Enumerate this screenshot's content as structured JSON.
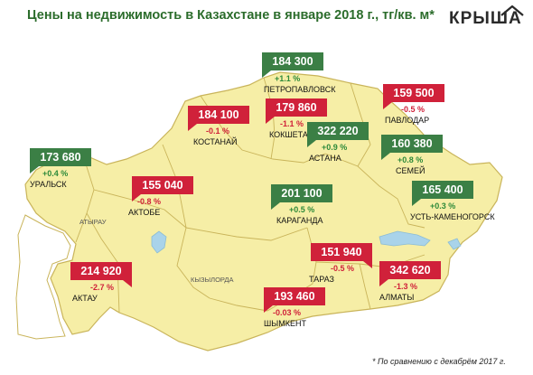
{
  "title": "Цены на недвижимость в Казахстане в январе 2018 г., тг/кв. м*",
  "logo": "КРЫША",
  "footnote": "* По сравнению с декабрём 2017 г.",
  "colors": {
    "up": "#3b7f45",
    "down": "#d0213a",
    "land": "#f6eea6",
    "border": "#c9b45a",
    "water": "#a9d3ea"
  },
  "regions": [
    "АТЫРАУ",
    "КЫЗЫЛОРДА"
  ],
  "cities": [
    {
      "name": "ПЕТРОПАВЛОВСК",
      "price": "184 300",
      "change": "+1.1 %",
      "trend": "up"
    },
    {
      "name": "ПАВЛОДАР",
      "price": "159 500",
      "change": "-0.5 %",
      "trend": "down"
    },
    {
      "name": "КОСТАНАЙ",
      "price": "184 100",
      "change": "-0.1 %",
      "trend": "down"
    },
    {
      "name": "КОКШЕТАУ",
      "price": "179 860",
      "change": "-1.1 %",
      "trend": "down"
    },
    {
      "name": "АСТАНА",
      "price": "322 220",
      "change": "+0.9 %",
      "trend": "up"
    },
    {
      "name": "СЕМЕЙ",
      "price": "160 380",
      "change": "+0.8 %",
      "trend": "up"
    },
    {
      "name": "УРАЛЬСК",
      "price": "173 680",
      "change": "+0.4 %",
      "trend": "up"
    },
    {
      "name": "АКТОБЕ",
      "price": "155 040",
      "change": "-0.8 %",
      "trend": "down"
    },
    {
      "name": "КАРАГАНДА",
      "price": "201 100",
      "change": "+0.5 %",
      "trend": "up"
    },
    {
      "name": "УСТЬ-КАМЕНОГОРСК",
      "price": "165 400",
      "change": "+0.3 %",
      "trend": "up"
    },
    {
      "name": "ТАРАЗ",
      "price": "151 940",
      "change": "-0.5 %",
      "trend": "down"
    },
    {
      "name": "АКТАУ",
      "price": "214 920",
      "change": "-2.7 %",
      "trend": "down"
    },
    {
      "name": "АЛМАТЫ",
      "price": "342 620",
      "change": "-1.3 %",
      "trend": "down"
    },
    {
      "name": "ШЫМКЕНТ",
      "price": "193 460",
      "change": "-0.03 %",
      "trend": "down"
    }
  ]
}
